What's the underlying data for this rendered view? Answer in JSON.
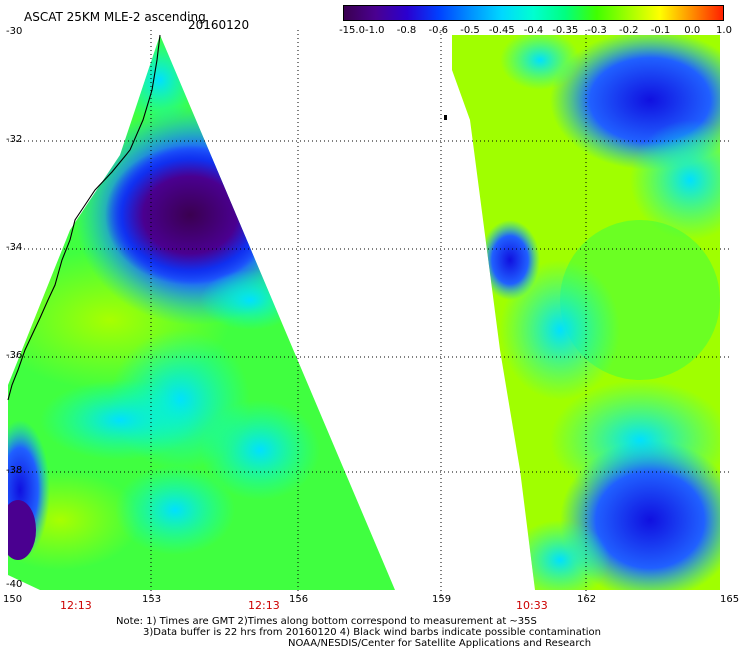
{
  "header": {
    "title": "ASCAT 25KM MLE-2 ascending",
    "date": "20160120"
  },
  "colorbar": {
    "labels": [
      "-15.0",
      "-1.0",
      "-0.8",
      "-0.6",
      "-0.5",
      "-0.45",
      "-0.4",
      "-0.35",
      "-0.3",
      "-0.2",
      "-0.1",
      "0.0",
      "1.0"
    ],
    "colors": [
      "#3a0050",
      "#4a0090",
      "#2a00d0",
      "#0040ff",
      "#0090ff",
      "#00d8ff",
      "#00ffd0",
      "#00ff80",
      "#40ff00",
      "#a0ff00",
      "#ffff00",
      "#ff9000",
      "#ff2000"
    ]
  },
  "axes": {
    "lon_labels": [
      "150",
      "153",
      "156",
      "159",
      "162",
      "165"
    ],
    "lat_labels": [
      "-30",
      "-32",
      "-34",
      "-36",
      "-38",
      "-40"
    ]
  },
  "times": [
    "12:13",
    "12:13",
    "10:33"
  ],
  "notes": {
    "line1": "Note: 1) Times are GMT 2)Times along bottom correspond to measurement at ~35S",
    "line2": "3)Data buffer is 22 hrs from 20160120 4) Black wind barbs indicate possible contamination",
    "line3": "NOAA/NESDIS/Center for Satellite Applications and Research"
  },
  "colors": {
    "deep_purple": "#3a0050",
    "blue": "#1030f0",
    "cyan": "#00e8e8",
    "green": "#40ff40",
    "lime": "#a0ff00",
    "coast": "#000000",
    "grid": "#000000",
    "time_text": "#cc0000"
  }
}
